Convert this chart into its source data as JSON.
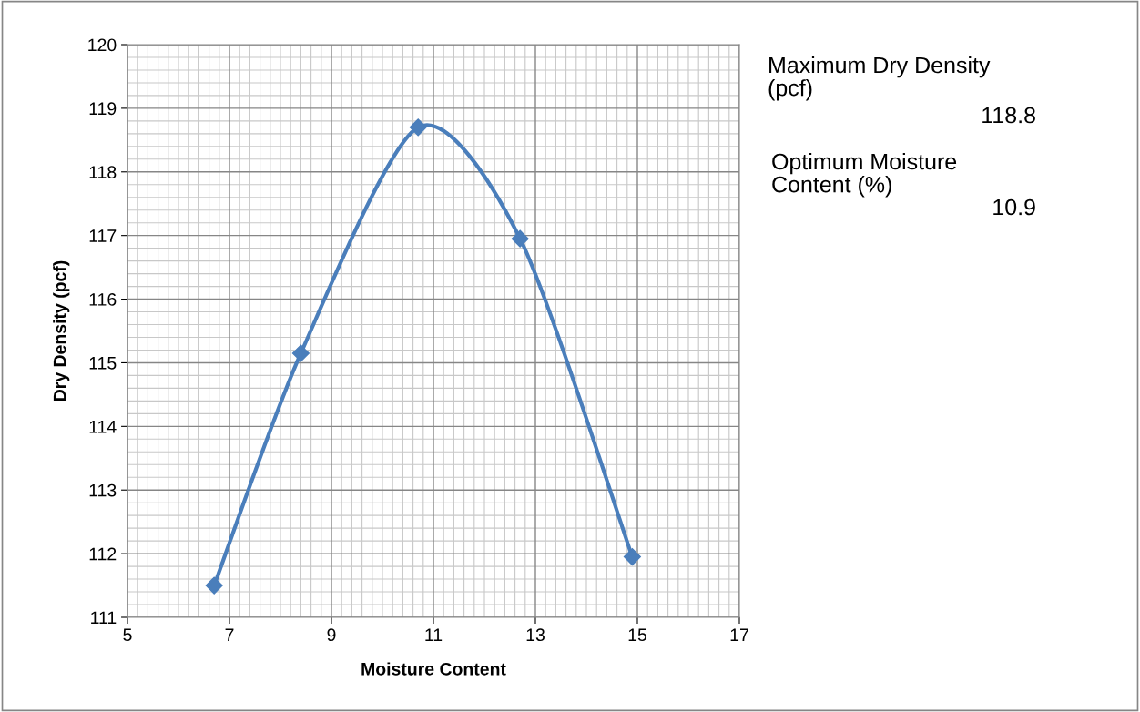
{
  "chart_data": {
    "type": "line",
    "xlabel": "Moisture Content",
    "ylabel": "Dry Density (pcf)",
    "x": [
      6.7,
      8.4,
      10.7,
      12.7,
      14.9
    ],
    "series": [
      {
        "color": "#4a7ebb",
        "values": [
          111.5,
          115.15,
          118.7,
          116.95,
          111.95
        ]
      }
    ],
    "marker": "diamond",
    "line_style": "solid",
    "grid": true,
    "xlim": [
      5,
      17
    ],
    "xticks": [
      5,
      7,
      9,
      11,
      13,
      15,
      17
    ],
    "ylim": [
      111,
      120
    ],
    "yticks": [
      111,
      112,
      113,
      114,
      115,
      116,
      117,
      118,
      119,
      120
    ],
    "annotations": [
      "Maximum Dry Density\n(pcf)",
      "118.8",
      "Optimum Moisture\nContent (%)",
      "10.9"
    ]
  }
}
